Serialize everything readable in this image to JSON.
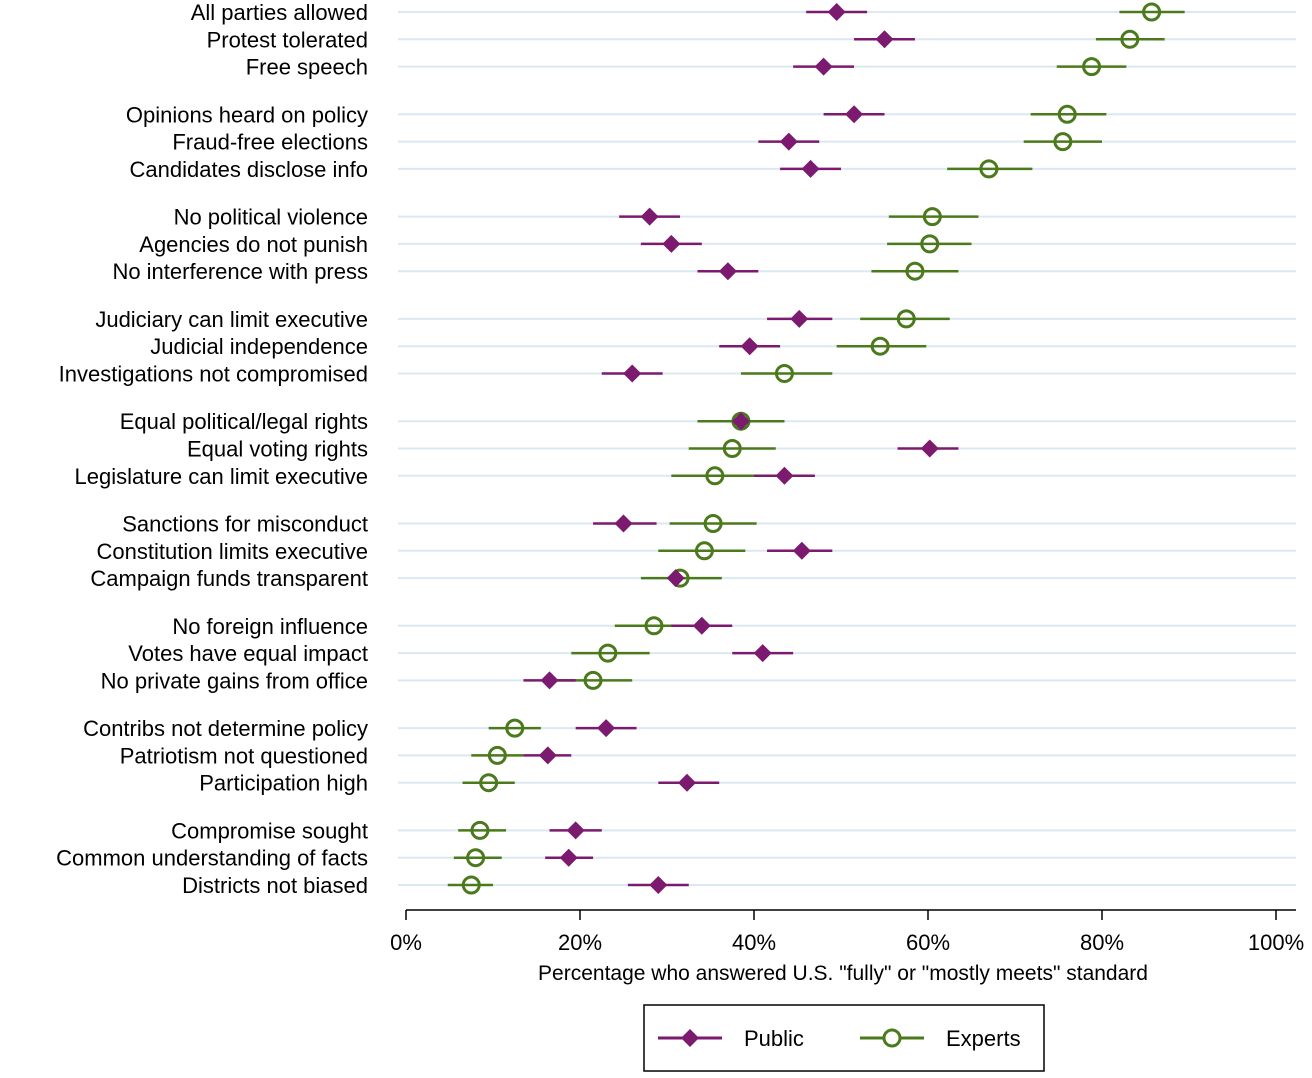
{
  "chart_data": {
    "type": "dot-range",
    "xlabel": "Percentage who answered U.S. \"fully\" or \"mostly meets\" standard",
    "xlim": [
      0,
      100
    ],
    "xticks": [
      "0%",
      "20%",
      "40%",
      "60%",
      "80%",
      "100%"
    ],
    "xtick_values": [
      0,
      20,
      40,
      60,
      80,
      100
    ],
    "grid": "horizontal",
    "legend_position": "bottom-center",
    "colors": {
      "public": "#7b1a6e",
      "experts": "#4a7a1c",
      "grid": "#dce8f0"
    },
    "series": [
      {
        "name": "Public",
        "key": "public",
        "marker": "diamond"
      },
      {
        "name": "Experts",
        "key": "experts",
        "marker": "hollow-circle"
      }
    ],
    "groups": [
      [
        {
          "label": "All parties allowed",
          "public": [
            49.5,
            46,
            53
          ],
          "experts": [
            85.7,
            82,
            89.5
          ]
        },
        {
          "label": "Protest tolerated",
          "public": [
            55,
            51.5,
            58.5
          ],
          "experts": [
            83.2,
            79.3,
            87.2
          ]
        },
        {
          "label": "Free speech",
          "public": [
            48,
            44.5,
            51.5
          ],
          "experts": [
            78.8,
            74.8,
            82.8
          ]
        }
      ],
      [
        {
          "label": "Opinions heard on policy",
          "public": [
            51.5,
            48,
            55
          ],
          "experts": [
            76,
            71.8,
            80.5
          ]
        },
        {
          "label": "Fraud-free elections",
          "public": [
            44,
            40.5,
            47.5
          ],
          "experts": [
            75.5,
            71,
            80
          ]
        },
        {
          "label": "Candidates disclose info",
          "public": [
            46.5,
            43,
            50
          ],
          "experts": [
            67,
            62.2,
            72
          ]
        }
      ],
      [
        {
          "label": "No political violence",
          "public": [
            28,
            24.5,
            31.5
          ],
          "experts": [
            60.5,
            55.5,
            65.8
          ]
        },
        {
          "label": "Agencies do not punish",
          "public": [
            30.5,
            27,
            34
          ],
          "experts": [
            60.2,
            55.3,
            65
          ]
        },
        {
          "label": "No interference with press",
          "public": [
            37,
            33.5,
            40.5
          ],
          "experts": [
            58.5,
            53.5,
            63.5
          ]
        }
      ],
      [
        {
          "label": "Judiciary can limit executive",
          "public": [
            45.2,
            41.5,
            49
          ],
          "experts": [
            57.5,
            52.2,
            62.5
          ]
        },
        {
          "label": "Judicial independence",
          "public": [
            39.5,
            36,
            43
          ],
          "experts": [
            54.5,
            49.5,
            59.8
          ]
        },
        {
          "label": "Investigations not compromised",
          "public": [
            26,
            22.5,
            29.5
          ],
          "experts": [
            43.5,
            38.5,
            49
          ]
        }
      ],
      [
        {
          "label": "Equal political/legal rights",
          "public": [
            38.5,
            38.5,
            38.5
          ],
          "experts": [
            38.5,
            33.5,
            43.5
          ]
        },
        {
          "label": "Equal voting rights",
          "public": [
            60.2,
            56.5,
            63.5
          ],
          "experts": [
            37.5,
            32.5,
            42.5
          ]
        },
        {
          "label": "Legislature can limit executive",
          "public": [
            43.5,
            40,
            47
          ],
          "experts": [
            35.5,
            30.5,
            40.5
          ]
        }
      ],
      [
        {
          "label": "Sanctions for misconduct",
          "public": [
            25,
            21.5,
            28.8
          ],
          "experts": [
            35.3,
            30.3,
            40.3
          ]
        },
        {
          "label": "Constitution limits executive",
          "public": [
            45.5,
            41.5,
            49
          ],
          "experts": [
            34.3,
            29,
            39
          ]
        },
        {
          "label": "Campaign funds transparent",
          "public": [
            31,
            31,
            31
          ],
          "experts": [
            31.5,
            27,
            36.3
          ]
        }
      ],
      [
        {
          "label": "No foreign influence",
          "public": [
            34,
            30.5,
            37.5
          ],
          "experts": [
            28.5,
            24,
            33.5
          ]
        },
        {
          "label": "Votes have equal impact",
          "public": [
            41,
            37.5,
            44.5
          ],
          "experts": [
            23.2,
            19,
            28
          ]
        },
        {
          "label": "No private gains from office",
          "public": [
            16.5,
            13.5,
            19.5
          ],
          "experts": [
            21.5,
            17,
            26
          ]
        }
      ],
      [
        {
          "label": "Contribs not determine policy",
          "public": [
            23,
            19.5,
            26.5
          ],
          "experts": [
            12.5,
            9.5,
            15.5
          ]
        },
        {
          "label": "Patriotism not questioned",
          "public": [
            16.3,
            13.5,
            19
          ],
          "experts": [
            10.5,
            7.5,
            13.5
          ]
        },
        {
          "label": "Participation high",
          "public": [
            32.3,
            29,
            36
          ],
          "experts": [
            9.5,
            6.5,
            12.5
          ]
        }
      ],
      [
        {
          "label": "Compromise sought",
          "public": [
            19.5,
            16.5,
            22.5
          ],
          "experts": [
            8.5,
            6,
            11.5
          ]
        },
        {
          "label": "Common understanding of facts",
          "public": [
            18.7,
            16,
            21.5
          ],
          "experts": [
            8,
            5.5,
            11
          ]
        },
        {
          "label": "Districts not biased",
          "public": [
            29,
            25.5,
            32.5
          ],
          "experts": [
            7.5,
            4.8,
            10
          ]
        }
      ]
    ]
  }
}
